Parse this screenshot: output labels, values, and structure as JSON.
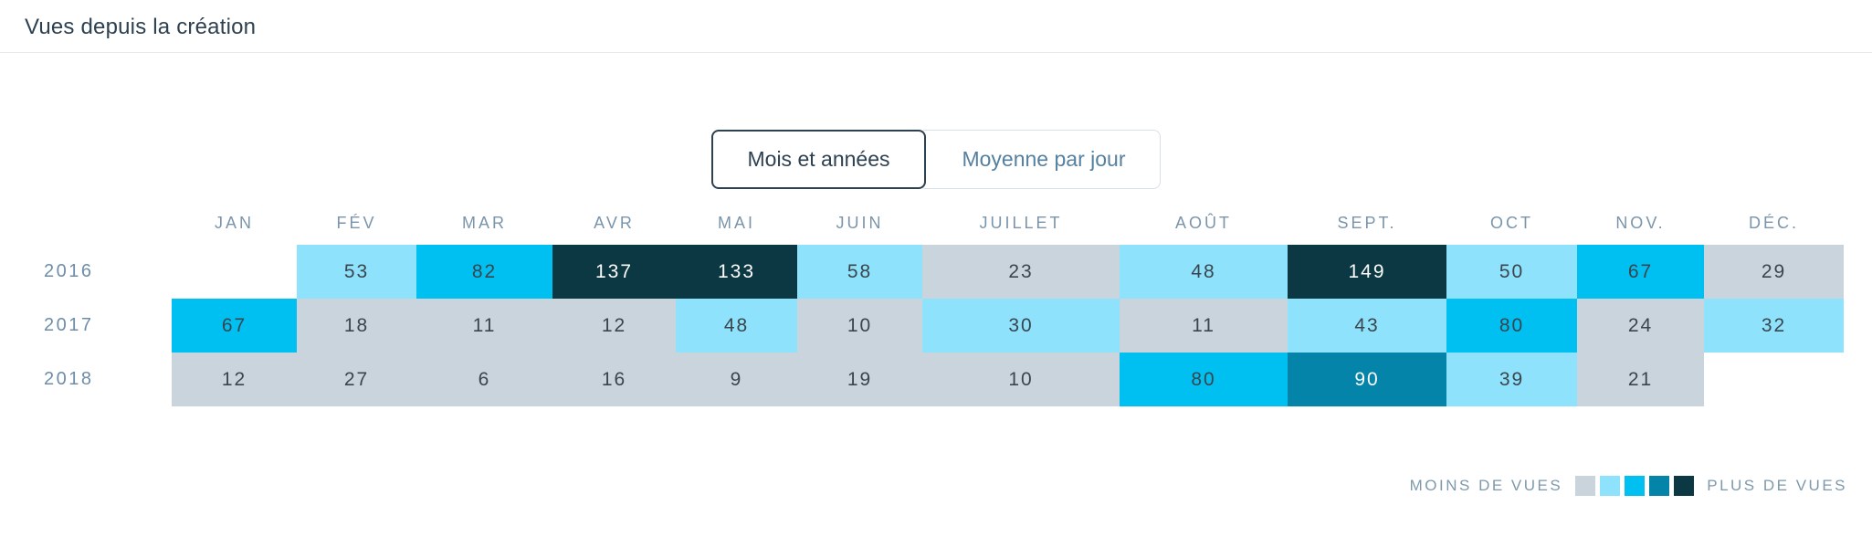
{
  "title": "Vues depuis la création",
  "toggle": {
    "options": [
      {
        "label": "Mois et années",
        "active": true
      },
      {
        "label": "Moyenne par jour",
        "active": false
      }
    ]
  },
  "legend": {
    "less_label": "MOINS DE VUES",
    "more_label": "PLUS DE VUES",
    "swatches": [
      "#CAD4DD",
      "#8FE2FB",
      "#00BFF1",
      "#0584A9",
      "#0C3843"
    ]
  },
  "palette": {
    "0": "#FFFFFF",
    "1": "#CAD4DD",
    "2": "#8FE2FB",
    "3": "#00BFF1",
    "4": "#0584A9",
    "5": "#0C3843",
    "text_dark": "#3A454E",
    "text_light": "#FCFDFD"
  },
  "chart_data": {
    "type": "heatmap",
    "title": "Vues depuis la création",
    "columns": [
      "JAN",
      "FÉV",
      "MAR",
      "AVR",
      "MAI",
      "JUIN",
      "JUILLET",
      "AOÛT",
      "SEPT.",
      "OCT",
      "NOV.",
      "DÉC."
    ],
    "rows": [
      {
        "year": "2016",
        "values": [
          null,
          53,
          82,
          137,
          133,
          58,
          23,
          48,
          149,
          50,
          67,
          29
        ],
        "levels": [
          0,
          2,
          3,
          5,
          5,
          2,
          1,
          2,
          5,
          2,
          3,
          1
        ]
      },
      {
        "year": "2017",
        "values": [
          67,
          18,
          11,
          12,
          48,
          10,
          30,
          11,
          43,
          80,
          24,
          32
        ],
        "levels": [
          3,
          1,
          1,
          1,
          2,
          1,
          2,
          1,
          2,
          3,
          1,
          2
        ]
      },
      {
        "year": "2018",
        "values": [
          12,
          27,
          6,
          16,
          9,
          19,
          10,
          80,
          90,
          39,
          21,
          null
        ],
        "levels": [
          1,
          1,
          1,
          1,
          1,
          1,
          1,
          3,
          4,
          2,
          1,
          0
        ]
      }
    ],
    "value_scale": "5 color levels from MOINS DE VUES (less views) to PLUS DE VUES (more views)",
    "legend_position": "bottom-right"
  }
}
